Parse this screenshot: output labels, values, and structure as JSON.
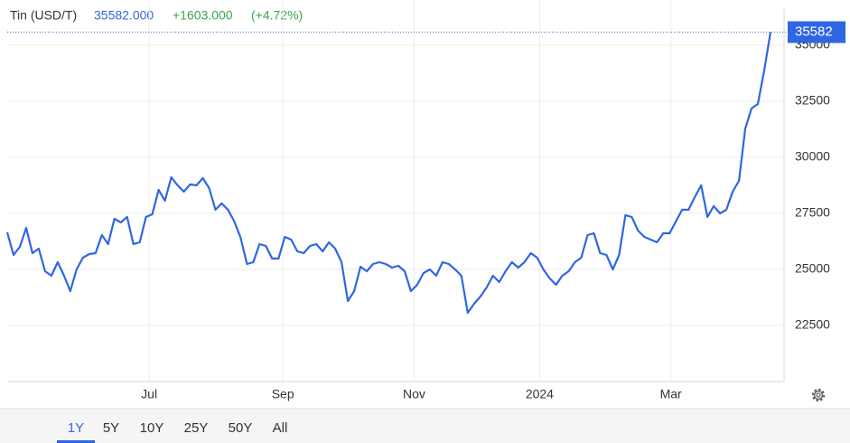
{
  "chart_data": {
    "type": "line",
    "header": {
      "name": "Tin (USD/T)",
      "price": "35582.000",
      "change": "+1603.000",
      "change_pct": "(+4.72%)"
    },
    "last_price_label": "35582",
    "series": [
      {
        "name": "Tin (USD/T)",
        "color": "#2f66e3",
        "values": [
          26653,
          25645,
          26008,
          26855,
          25726,
          25927,
          24919,
          24717,
          25322,
          24717,
          24032,
          25000,
          25524,
          25685,
          25726,
          26532,
          26129,
          27258,
          27097,
          27339,
          26129,
          26209,
          27339,
          27459,
          28548,
          28064,
          29112,
          28750,
          28467,
          28790,
          28750,
          29072,
          28629,
          27661,
          27943,
          27661,
          27137,
          26411,
          25242,
          25322,
          26129,
          26048,
          25484,
          25484,
          26451,
          26330,
          25806,
          25726,
          26048,
          26129,
          25806,
          26209,
          25927,
          25322,
          23588,
          24032,
          25121,
          24919,
          25242,
          25322,
          25242,
          25081,
          25161,
          24919,
          24032,
          24314,
          24838,
          25000,
          24717,
          25322,
          25242,
          25000,
          24717,
          23064,
          23468,
          23790,
          24193,
          24717,
          24435,
          24919,
          25322,
          25081,
          25322,
          25726,
          25524,
          25000,
          24596,
          24314,
          24717,
          24919,
          25322,
          25524,
          26532,
          26612,
          25726,
          25645,
          25000,
          25645,
          27419,
          27339,
          26733,
          26451,
          26330,
          26209,
          26612,
          26612,
          27137,
          27661,
          27661,
          28225,
          28750,
          27339,
          27822,
          27500,
          27661,
          28467,
          28951,
          31290,
          32177,
          32379,
          33870,
          35582
        ]
      }
    ],
    "xlim": [
      0,
      121
    ],
    "xticks": [
      {
        "value": 22.5,
        "label": "Jul"
      },
      {
        "value": 43.7,
        "label": "Sep"
      },
      {
        "value": 64.5,
        "label": "Nov"
      },
      {
        "value": 84.4,
        "label": "2024"
      },
      {
        "value": 105.2,
        "label": "Mar"
      }
    ],
    "ylim": [
      20000,
      36500
    ],
    "yticks": [
      22500,
      25000,
      27500,
      30000,
      32500,
      35000
    ],
    "grid": true,
    "ranges": [
      "1Y",
      "5Y",
      "10Y",
      "25Y",
      "50Y",
      "All"
    ],
    "selected_range": 0
  }
}
